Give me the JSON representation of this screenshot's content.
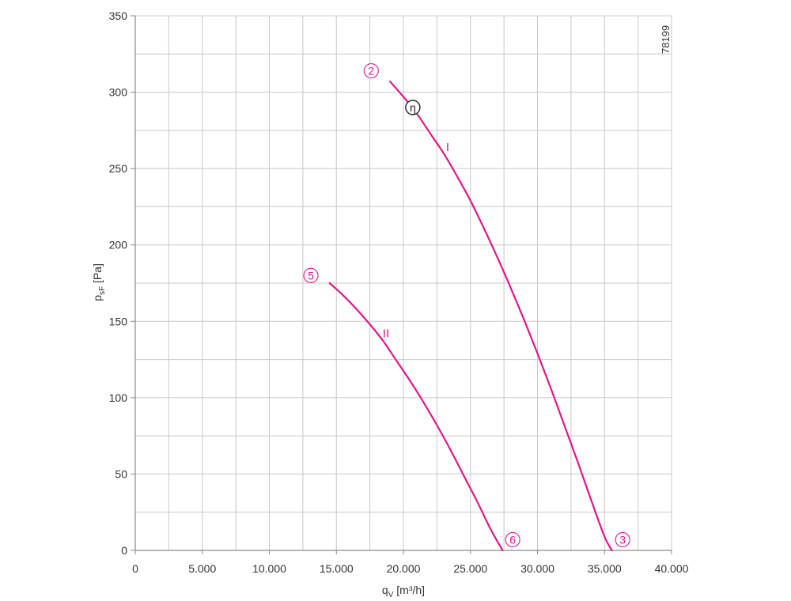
{
  "chart_data": {
    "type": "line",
    "xlabel": "q",
    "xlabel_sub": "V",
    "xlabel_unit": " [m³/h]",
    "ylabel": "p",
    "ylabel_sub": "sF",
    "ylabel_unit": " [Pa]",
    "xlim": [
      0,
      40000
    ],
    "ylim": [
      0,
      350
    ],
    "x_ticks": [
      0,
      5000,
      10000,
      15000,
      20000,
      25000,
      30000,
      35000,
      40000
    ],
    "x_tick_labels": [
      "0",
      "5.000",
      "10.000",
      "15.000",
      "20.000",
      "25.000",
      "30.000",
      "35.000",
      "40.000"
    ],
    "y_ticks": [
      0,
      50,
      100,
      150,
      200,
      250,
      300,
      350
    ],
    "y_tick_labels": [
      "0",
      "50",
      "100",
      "150",
      "200",
      "250",
      "300",
      "350"
    ],
    "x_grid_step": 2500,
    "y_grid_step": 25,
    "grid": true,
    "code": "78199",
    "color": "#e0168a",
    "series": [
      {
        "name": "I",
        "x": [
          19000,
          20000,
          21000,
          22000,
          23000,
          24000,
          25000,
          26000,
          27000,
          28000,
          29000,
          30000,
          31000,
          32000,
          33000,
          34000,
          35000,
          35550
        ],
        "y": [
          307,
          297,
          286,
          273,
          260,
          245,
          229,
          211,
          192,
          172,
          151,
          129,
          106,
          82,
          58,
          33,
          9,
          0
        ]
      },
      {
        "name": "II",
        "x": [
          14500,
          15500,
          16500,
          17500,
          18500,
          19500,
          20500,
          21500,
          22500,
          23500,
          24500,
          25500,
          26500,
          27400
        ],
        "y": [
          175,
          167,
          158,
          148,
          137,
          124,
          111,
          97,
          82,
          66,
          49,
          32,
          14,
          0
        ]
      }
    ],
    "series_labels": [
      {
        "text": "I",
        "x": 23300,
        "y": 264
      },
      {
        "text": "II",
        "x": 18700,
        "y": 142
      }
    ],
    "markers": [
      {
        "text": "2",
        "x": 17600,
        "y": 314,
        "style": "pink"
      },
      {
        "text": "3",
        "x": 36350,
        "y": 7,
        "style": "pink"
      },
      {
        "text": "5",
        "x": 13100,
        "y": 180,
        "style": "pink"
      },
      {
        "text": "6",
        "x": 28150,
        "y": 7,
        "style": "pink"
      },
      {
        "text": "η",
        "x": 20700,
        "y": 290,
        "style": "eta"
      }
    ]
  }
}
